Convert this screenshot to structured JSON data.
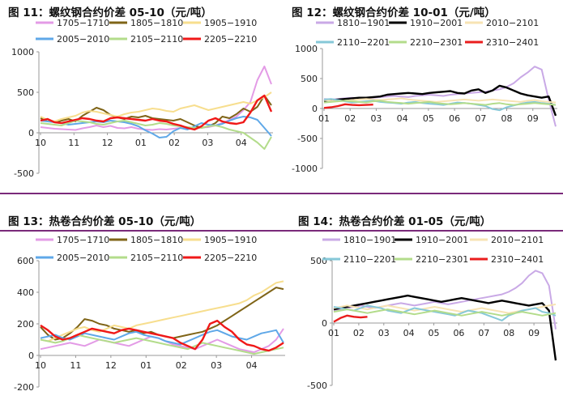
{
  "colors": {
    "rule": "#7a2a7a",
    "s1": "#e39be6",
    "s2": "#7f6417",
    "s3": "#f7de8e",
    "s4": "#5fa8e8",
    "s5": "#b3dc8b",
    "s6": "#f01818",
    "s7": "#c9a9e6",
    "s8": "#000000",
    "s9": "#f7e3b3",
    "s10": "#86c8d8",
    "s11": "#b3dc8b",
    "s12": "#ea1d1d"
  },
  "chart_data": [
    {
      "title": "图 11：螺纹钢合约价差 05-10（元/吨）",
      "type": "line",
      "ylim": [
        -500,
        1000
      ],
      "yticks": [
        -500,
        0,
        500,
        1000
      ],
      "xticks": [
        "10",
        "11",
        "12",
        "01",
        "02",
        "03",
        "04"
      ],
      "legend_position": "top",
      "series": [
        {
          "name": "1705−1710",
          "color": "s1",
          "values": [
            70,
            60,
            50,
            45,
            40,
            35,
            55,
            70,
            90,
            70,
            85,
            60,
            55,
            70,
            50,
            40,
            35,
            45,
            40,
            50,
            60,
            45,
            55,
            65,
            70,
            90,
            120,
            160,
            200,
            280,
            380,
            650,
            820,
            600
          ]
        },
        {
          "name": "1805−1810",
          "color": "s2",
          "values": [
            180,
            150,
            130,
            150,
            170,
            140,
            210,
            260,
            310,
            280,
            220,
            190,
            170,
            200,
            190,
            210,
            180,
            170,
            160,
            150,
            170,
            130,
            90,
            60,
            80,
            120,
            200,
            180,
            230,
            300,
            260,
            320,
            460,
            340
          ]
        },
        {
          "name": "1905−1910",
          "color": "s3",
          "values": [
            200,
            160,
            140,
            170,
            190,
            210,
            250,
            270,
            260,
            240,
            220,
            200,
            230,
            250,
            260,
            280,
            300,
            290,
            270,
            260,
            300,
            320,
            340,
            310,
            280,
            300,
            320,
            340,
            360,
            380,
            360,
            400,
            440,
            500
          ]
        },
        {
          "name": "2005−2010",
          "color": "s4",
          "values": [
            150,
            140,
            130,
            120,
            100,
            110,
            120,
            130,
            140,
            130,
            150,
            140,
            130,
            110,
            80,
            30,
            -10,
            -60,
            -50,
            20,
            60,
            40,
            80,
            120,
            100,
            90,
            110,
            150,
            180,
            200,
            190,
            160,
            60,
            -40
          ]
        },
        {
          "name": "2105−2110",
          "color": "s5",
          "values": [
            120,
            110,
            100,
            90,
            120,
            150,
            140,
            130,
            110,
            100,
            120,
            140,
            150,
            130,
            110,
            90,
            100,
            120,
            110,
            90,
            80,
            70,
            60,
            60,
            80,
            90,
            70,
            40,
            20,
            0,
            -60,
            -120,
            -200,
            -50
          ]
        },
        {
          "name": "2205−2210",
          "color": "s6",
          "values": [
            150,
            170,
            130,
            120,
            140,
            160,
            180,
            170,
            150,
            140,
            180,
            190,
            180,
            170,
            160,
            150,
            170,
            150,
            140,
            110,
            90,
            60,
            40,
            80,
            150,
            180,
            140,
            120,
            110,
            130,
            250,
            400,
            460,
            260
          ]
        }
      ]
    },
    {
      "title": "图 12：螺纹钢合约价差 10-01（元/吨）",
      "type": "line",
      "ylim": [
        -1000,
        1000
      ],
      "yticks": [
        -1000,
        -500,
        0,
        500,
        1000
      ],
      "xticks": [
        "01",
        "02",
        "03",
        "04",
        "05",
        "06",
        "07",
        "08",
        "09"
      ],
      "legend_position": "top",
      "series": [
        {
          "name": "1810−1901",
          "color": "s7",
          "values": [
            160,
            150,
            160,
            170,
            180,
            170,
            160,
            180,
            190,
            200,
            210,
            200,
            190,
            210,
            220,
            230,
            220,
            210,
            230,
            240,
            250,
            260,
            270,
            280,
            300,
            320,
            360,
            420,
            520,
            600,
            700,
            650,
            150,
            -300
          ]
        },
        {
          "name": "1910−2001",
          "color": "s8",
          "values": [
            130,
            140,
            150,
            160,
            170,
            180,
            180,
            190,
            200,
            230,
            240,
            250,
            260,
            250,
            240,
            260,
            270,
            280,
            290,
            260,
            250,
            300,
            320,
            260,
            300,
            380,
            350,
            300,
            250,
            220,
            200,
            180,
            200,
            -120
          ]
        },
        {
          "name": "2010−2101",
          "color": "s9",
          "values": [
            140,
            130,
            120,
            130,
            140,
            150,
            160,
            150,
            140,
            150,
            160,
            170,
            150,
            140,
            130,
            120,
            110,
            120,
            130,
            140,
            150,
            140,
            130,
            140,
            150,
            140,
            130,
            120,
            110,
            130,
            140,
            120,
            110,
            100
          ]
        },
        {
          "name": "2110−2201",
          "color": "s10",
          "values": [
            150,
            160,
            140,
            120,
            100,
            110,
            120,
            130,
            110,
            100,
            90,
            80,
            100,
            110,
            90,
            80,
            70,
            60,
            80,
            100,
            90,
            80,
            60,
            40,
            -10,
            -30,
            20,
            50,
            80,
            100,
            110,
            90,
            80,
            60
          ]
        },
        {
          "name": "2210−2301",
          "color": "s11",
          "values": [
            100,
            110,
            120,
            130,
            120,
            110,
            100,
            120,
            130,
            110,
            100,
            90,
            80,
            90,
            100,
            110,
            90,
            80,
            70,
            80,
            90,
            80,
            70,
            60,
            80,
            90,
            70,
            60,
            70,
            80,
            90,
            80,
            70,
            60
          ]
        },
        {
          "name": "2310−2401",
          "color": "s12",
          "values": [
            10,
            20,
            40,
            70,
            60,
            55,
            60,
            65
          ]
        }
      ]
    },
    {
      "title": "图 13：热卷合约价差 05-10（元/吨）",
      "type": "line",
      "ylim": [
        -200,
        600
      ],
      "yticks": [
        -200,
        0,
        200,
        400,
        600
      ],
      "xticks": [
        "10",
        "11",
        "12",
        "01",
        "02",
        "03",
        "04"
      ],
      "legend_position": "top",
      "series": [
        {
          "name": "1705−1710",
          "color": "s1",
          "values": [
            40,
            50,
            60,
            70,
            80,
            70,
            60,
            80,
            100,
            90,
            80,
            70,
            60,
            80,
            100,
            120,
            110,
            90,
            70,
            60,
            50,
            40,
            60,
            80,
            100,
            80,
            60,
            40,
            30,
            20,
            40,
            60,
            100,
            170
          ]
        },
        {
          "name": "1805−1810",
          "color": "s2",
          "values": [
            180,
            130,
            100,
            110,
            140,
            180,
            230,
            220,
            200,
            190,
            170,
            160,
            150,
            160,
            140,
            150,
            130,
            120,
            110,
            120,
            130,
            140,
            150,
            170,
            190,
            220,
            250,
            280,
            310,
            340,
            370,
            400,
            430,
            420
          ]
        },
        {
          "name": "1905−1910",
          "color": "s3",
          "values": [
            100,
            90,
            110,
            130,
            150,
            170,
            180,
            160,
            150,
            170,
            190,
            180,
            170,
            190,
            200,
            210,
            220,
            230,
            240,
            250,
            260,
            270,
            280,
            290,
            300,
            310,
            320,
            330,
            350,
            380,
            400,
            430,
            460,
            470
          ]
        },
        {
          "name": "2005−2010",
          "color": "s4",
          "values": [
            110,
            120,
            130,
            110,
            100,
            120,
            140,
            130,
            120,
            110,
            100,
            120,
            140,
            150,
            130,
            120,
            110,
            90,
            80,
            70,
            90,
            110,
            130,
            150,
            160,
            140,
            120,
            110,
            100,
            120,
            140,
            150,
            160,
            80
          ]
        },
        {
          "name": "2105−2110",
          "color": "s5",
          "values": [
            100,
            90,
            80,
            90,
            110,
            130,
            120,
            110,
            100,
            90,
            80,
            90,
            100,
            110,
            100,
            90,
            80,
            70,
            60,
            50,
            40,
            60,
            80,
            70,
            60,
            50,
            40,
            30,
            20,
            10,
            20,
            30,
            40,
            50
          ]
        },
        {
          "name": "2205−2210",
          "color": "s6",
          "values": [
            190,
            160,
            120,
            100,
            110,
            130,
            150,
            170,
            160,
            150,
            140,
            160,
            170,
            160,
            150,
            140,
            130,
            120,
            110,
            80,
            60,
            40,
            100,
            200,
            220,
            180,
            150,
            100,
            70,
            60,
            40,
            30,
            50,
            80
          ]
        }
      ]
    },
    {
      "title": "图 14：热卷合约价差 01-05（元/吨）",
      "type": "line",
      "ylim": [
        -500,
        500
      ],
      "yticks": [
        -500,
        0,
        500
      ],
      "xticks": [
        "01",
        "02",
        "03",
        "04",
        "05",
        "06",
        "07",
        "08",
        "09"
      ],
      "legend_position": "top",
      "series": [
        {
          "name": "1810−1901",
          "color": "s7",
          "values": [
            100,
            110,
            120,
            130,
            140,
            130,
            120,
            130,
            140,
            150,
            160,
            150,
            140,
            150,
            160,
            170,
            160,
            150,
            160,
            170,
            180,
            190,
            200,
            210,
            220,
            230,
            250,
            280,
            320,
            380,
            420,
            400,
            300,
            -50
          ]
        },
        {
          "name": "1910−2001",
          "color": "s8",
          "values": [
            110,
            120,
            130,
            140,
            150,
            160,
            170,
            180,
            190,
            200,
            210,
            220,
            210,
            200,
            190,
            180,
            170,
            180,
            190,
            200,
            190,
            180,
            170,
            160,
            170,
            180,
            170,
            160,
            150,
            140,
            150,
            160,
            100,
            -300
          ]
        },
        {
          "name": "2010−2101",
          "color": "s9",
          "values": [
            120,
            130,
            140,
            130,
            120,
            110,
            120,
            130,
            140,
            130,
            120,
            110,
            100,
            110,
            120,
            130,
            120,
            110,
            100,
            90,
            100,
            110,
            120,
            110,
            100,
            90,
            80,
            90,
            100,
            110,
            120,
            130,
            140,
            150
          ]
        },
        {
          "name": "2110−2201",
          "color": "s10",
          "values": [
            130,
            120,
            110,
            100,
            120,
            140,
            130,
            120,
            100,
            90,
            80,
            100,
            120,
            110,
            100,
            90,
            80,
            70,
            60,
            80,
            100,
            90,
            80,
            60,
            40,
            20,
            60,
            80,
            100,
            110,
            120,
            90,
            80,
            60
          ]
        },
        {
          "name": "2210−2301",
          "color": "s11",
          "values": [
            90,
            100,
            110,
            100,
            90,
            80,
            90,
            100,
            110,
            100,
            90,
            80,
            70,
            80,
            90,
            100,
            90,
            80,
            70,
            60,
            70,
            80,
            90,
            80,
            70,
            60,
            70,
            80,
            90,
            80,
            70,
            60,
            70,
            80
          ]
        },
        {
          "name": "2310−2401",
          "color": "s12",
          "values": [
            10,
            40,
            60,
            50,
            45,
            50
          ]
        }
      ]
    }
  ]
}
